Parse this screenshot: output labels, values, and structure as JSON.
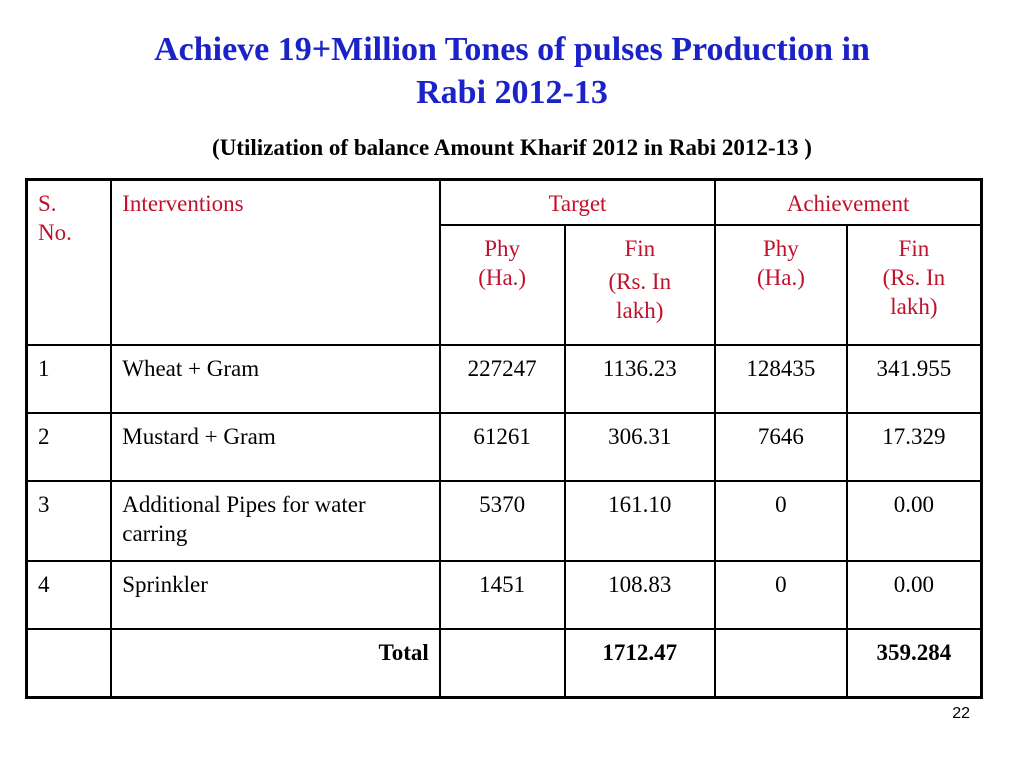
{
  "slide": {
    "title_line1": "Achieve 19+Million Tones of pulses Production in",
    "title_line2": "Rabi 2012-13",
    "subtitle": "(Utilization of balance Amount Kharif 2012 in Rabi 2012-13 )",
    "page_number": "22"
  },
  "colors": {
    "title": "#1a22c8",
    "header_text": "#c0102a"
  },
  "table": {
    "headers": {
      "sno_line1": "S.",
      "sno_line2": "No.",
      "interventions": "Interventions",
      "target": "Target",
      "achievement": "Achievement",
      "target_phy_line1": "Phy",
      "target_phy_line2": "(Ha.)",
      "target_fin_line1": "Fin",
      "target_fin_line2": "(Rs. In",
      "target_fin_line3": "lakh)",
      "ach_phy_line1": "Phy",
      "ach_phy_line2": "(Ha.)",
      "ach_fin_line1": "Fin",
      "ach_fin_line2": "(Rs. In",
      "ach_fin_line3": "lakh)"
    },
    "rows": [
      {
        "sno": "1",
        "intervention": "Wheat + Gram",
        "target_phy": "227247",
        "target_fin": "1136.23",
        "ach_phy": "128435",
        "ach_fin": "341.955"
      },
      {
        "sno": "2",
        "intervention": "Mustard + Gram",
        "target_phy": "61261",
        "target_fin": "306.31",
        "ach_phy": "7646",
        "ach_fin": "17.329"
      },
      {
        "sno": "3",
        "intervention": "Additional Pipes for water carring",
        "target_phy": "5370",
        "target_fin": "161.10",
        "ach_phy": "0",
        "ach_fin": "0.00"
      },
      {
        "sno": "4",
        "intervention": "Sprinkler",
        "target_phy": "1451",
        "target_fin": "108.83",
        "ach_phy": "0",
        "ach_fin": "0.00"
      }
    ],
    "total": {
      "label": "Total",
      "target_fin": "1712.47",
      "ach_fin": "359.284"
    }
  }
}
